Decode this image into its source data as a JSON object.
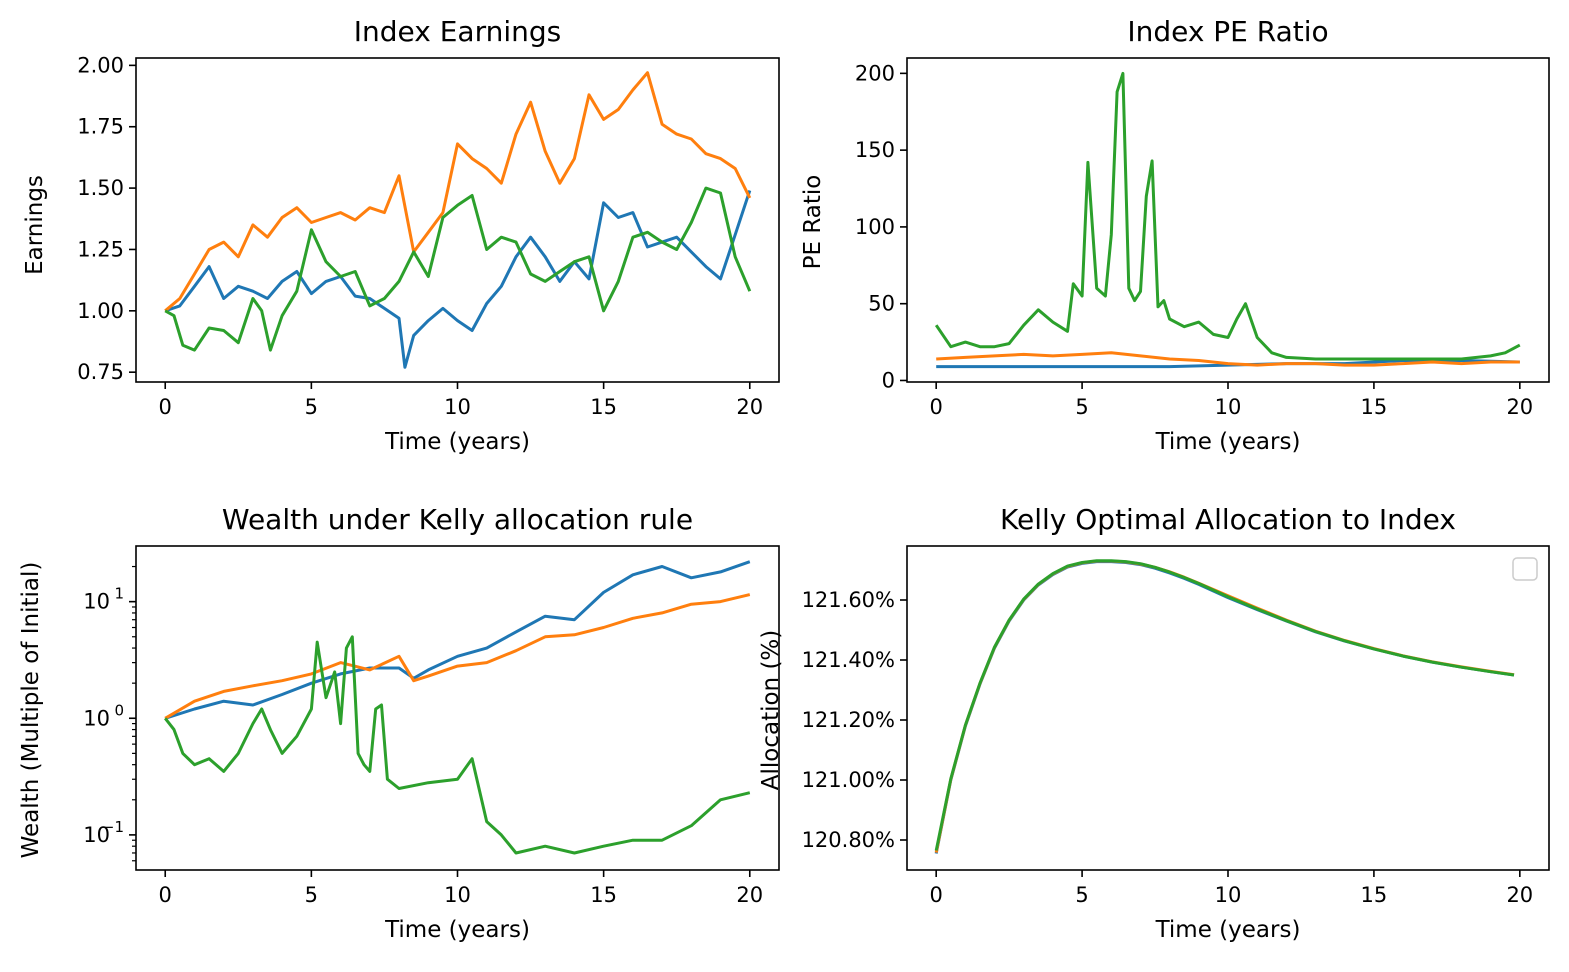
{
  "chart_data": [
    {
      "type": "line",
      "title": "Index Earnings",
      "xlabel": "Time (years)",
      "ylabel": "Earnings",
      "xlim": [
        -1,
        21
      ],
      "ylim": [
        0.71,
        2.03
      ],
      "xticks": [
        0,
        5,
        10,
        15,
        20
      ],
      "xtick_labels": [
        "0",
        "5",
        "10",
        "15",
        "20"
      ],
      "yticks": [
        0.75,
        1.0,
        1.25,
        1.5,
        1.75,
        2.0
      ],
      "ytick_labels": [
        "0.75",
        "1.00",
        "1.25",
        "1.50",
        "1.75",
        "2.00"
      ],
      "yscale": "linear",
      "legend": false,
      "series": [
        {
          "color": "#1f77b4",
          "x": [
            0,
            0.5,
            1,
            1.5,
            2,
            2.5,
            3,
            3.5,
            4,
            4.5,
            5,
            5.5,
            6,
            6.5,
            7,
            7.5,
            8,
            8.2,
            8.5,
            9,
            9.5,
            10,
            10.5,
            11,
            11.5,
            12,
            12.5,
            13,
            13.5,
            14,
            14.5,
            15,
            15.5,
            16,
            16.5,
            17,
            17.5,
            18,
            18.5,
            19,
            19.5,
            20
          ],
          "y": [
            1.0,
            1.02,
            1.1,
            1.18,
            1.05,
            1.1,
            1.08,
            1.05,
            1.12,
            1.16,
            1.07,
            1.12,
            1.14,
            1.06,
            1.05,
            1.01,
            0.97,
            0.77,
            0.9,
            0.96,
            1.01,
            0.96,
            0.92,
            1.03,
            1.1,
            1.22,
            1.3,
            1.22,
            1.12,
            1.2,
            1.13,
            1.44,
            1.38,
            1.4,
            1.26,
            1.28,
            1.3,
            1.24,
            1.18,
            1.13,
            1.31,
            1.49
          ]
        },
        {
          "color": "#ff7f0e",
          "x": [
            0,
            0.5,
            1,
            1.5,
            2,
            2.5,
            3,
            3.5,
            4,
            4.5,
            5,
            5.5,
            6,
            6.5,
            7,
            7.5,
            8,
            8.5,
            9,
            9.5,
            10,
            10.5,
            11,
            11.5,
            12,
            12.5,
            13,
            13.5,
            14,
            14.5,
            15,
            15.5,
            16,
            16.5,
            17,
            17.5,
            18,
            18.5,
            19,
            19.5,
            20
          ],
          "y": [
            1.0,
            1.05,
            1.15,
            1.25,
            1.28,
            1.22,
            1.35,
            1.3,
            1.38,
            1.42,
            1.36,
            1.38,
            1.4,
            1.37,
            1.42,
            1.4,
            1.55,
            1.24,
            1.32,
            1.4,
            1.68,
            1.62,
            1.58,
            1.52,
            1.72,
            1.85,
            1.65,
            1.52,
            1.62,
            1.88,
            1.78,
            1.82,
            1.9,
            1.97,
            1.76,
            1.72,
            1.7,
            1.64,
            1.62,
            1.58,
            1.46
          ]
        },
        {
          "color": "#2ca02c",
          "x": [
            0,
            0.3,
            0.6,
            1,
            1.5,
            2,
            2.5,
            3,
            3.3,
            3.6,
            4,
            4.5,
            5,
            5.5,
            6,
            6.5,
            7,
            7.5,
            8,
            8.5,
            9,
            9.5,
            10,
            10.5,
            11,
            11.5,
            12,
            12.5,
            13,
            13.5,
            14,
            14.5,
            15,
            15.5,
            16,
            16.5,
            17,
            17.5,
            18,
            18.5,
            19,
            19.5,
            20
          ],
          "y": [
            1.0,
            0.98,
            0.86,
            0.84,
            0.93,
            0.92,
            0.87,
            1.05,
            1.0,
            0.84,
            0.98,
            1.08,
            1.33,
            1.2,
            1.14,
            1.16,
            1.02,
            1.05,
            1.12,
            1.24,
            1.14,
            1.38,
            1.43,
            1.47,
            1.25,
            1.3,
            1.28,
            1.15,
            1.12,
            1.16,
            1.2,
            1.22,
            1.0,
            1.12,
            1.3,
            1.32,
            1.28,
            1.25,
            1.36,
            1.5,
            1.48,
            1.22,
            1.08
          ]
        }
      ]
    },
    {
      "type": "line",
      "title": "Index PE Ratio",
      "xlabel": "Time (years)",
      "ylabel": "PE Ratio",
      "xlim": [
        -1,
        21
      ],
      "ylim": [
        -1,
        210
      ],
      "xticks": [
        0,
        5,
        10,
        15,
        20
      ],
      "xtick_labels": [
        "0",
        "5",
        "10",
        "15",
        "20"
      ],
      "yticks": [
        0,
        50,
        100,
        150,
        200
      ],
      "ytick_labels": [
        "0",
        "50",
        "100",
        "150",
        "200"
      ],
      "yscale": "linear",
      "legend": false,
      "series": [
        {
          "color": "#1f77b4",
          "x": [
            0,
            2,
            4,
            6,
            8,
            10,
            12,
            14,
            16,
            18,
            20
          ],
          "y": [
            9,
            9,
            9,
            9,
            9,
            10,
            11,
            11,
            13,
            13,
            12
          ]
        },
        {
          "color": "#ff7f0e",
          "x": [
            0,
            1,
            2,
            3,
            4,
            5,
            6,
            7,
            8,
            9,
            10,
            11,
            12,
            13,
            14,
            15,
            16,
            17,
            18,
            19,
            20
          ],
          "y": [
            14,
            15,
            16,
            17,
            16,
            17,
            18,
            16,
            14,
            13,
            11,
            10,
            11,
            11,
            10,
            10,
            11,
            12,
            11,
            12,
            12
          ]
        },
        {
          "color": "#2ca02c",
          "x": [
            0,
            0.5,
            1,
            1.5,
            2,
            2.5,
            3,
            3.5,
            4,
            4.5,
            4.7,
            5,
            5.2,
            5.5,
            5.8,
            6,
            6.2,
            6.4,
            6.6,
            6.8,
            7,
            7.2,
            7.4,
            7.6,
            7.8,
            8,
            8.5,
            9,
            9.5,
            10,
            10.3,
            10.6,
            11,
            11.5,
            12,
            13,
            14,
            15,
            16,
            17,
            18,
            19,
            19.5,
            20
          ],
          "y": [
            36,
            22,
            25,
            22,
            22,
            24,
            36,
            46,
            38,
            32,
            63,
            55,
            142,
            60,
            55,
            95,
            188,
            200,
            60,
            52,
            58,
            120,
            143,
            48,
            52,
            40,
            35,
            38,
            30,
            28,
            40,
            50,
            28,
            18,
            15,
            14,
            14,
            14,
            14,
            14,
            14,
            16,
            18,
            23
          ]
        }
      ]
    },
    {
      "type": "line",
      "title": "Wealth under Kelly allocation rule",
      "xlabel": "Time (years)",
      "ylabel": "Wealth (Multiple of Initial)",
      "xlim": [
        -1,
        21
      ],
      "ylim": [
        0.05,
        30
      ],
      "xticks": [
        0,
        5,
        10,
        15,
        20
      ],
      "xtick_labels": [
        "0",
        "5",
        "10",
        "15",
        "20"
      ],
      "yticks": [
        0.1,
        1,
        10
      ],
      "ytick_labels": [
        "10",
        "10",
        "10"
      ],
      "ytick_exponents": [
        "−1",
        "0",
        "1"
      ],
      "yscale": "log",
      "legend": false,
      "series": [
        {
          "color": "#1f77b4",
          "x": [
            0,
            1,
            2,
            3,
            4,
            5,
            6,
            7,
            8,
            8.5,
            9,
            10,
            11,
            12,
            13,
            14,
            15,
            16,
            17,
            18,
            19,
            20
          ],
          "y": [
            1.0,
            1.2,
            1.4,
            1.3,
            1.6,
            2.0,
            2.4,
            2.7,
            2.7,
            2.2,
            2.6,
            3.4,
            4.0,
            5.5,
            7.5,
            7.0,
            12,
            17,
            20,
            16,
            18,
            22
          ]
        },
        {
          "color": "#ff7f0e",
          "x": [
            0,
            1,
            2,
            3,
            4,
            5,
            6,
            7,
            8,
            8.5,
            9,
            10,
            11,
            12,
            13,
            14,
            15,
            16,
            17,
            18,
            19,
            20
          ],
          "y": [
            1.0,
            1.4,
            1.7,
            1.9,
            2.1,
            2.4,
            3.0,
            2.6,
            3.4,
            2.1,
            2.3,
            2.8,
            3.0,
            3.8,
            5.0,
            5.2,
            6.0,
            7.2,
            8.0,
            9.5,
            10,
            11.5
          ]
        },
        {
          "color": "#2ca02c",
          "x": [
            0,
            0.3,
            0.6,
            1,
            1.5,
            2,
            2.5,
            3,
            3.3,
            3.6,
            4,
            4.5,
            5,
            5.2,
            5.5,
            5.8,
            6,
            6.2,
            6.4,
            6.6,
            6.8,
            7,
            7.2,
            7.4,
            7.6,
            8,
            9,
            10,
            10.5,
            11,
            11.5,
            12,
            13,
            14,
            15,
            16,
            17,
            18,
            19,
            20
          ],
          "y": [
            1.0,
            0.8,
            0.5,
            0.4,
            0.45,
            0.35,
            0.5,
            0.9,
            1.2,
            0.8,
            0.5,
            0.7,
            1.2,
            4.5,
            1.5,
            2.5,
            0.9,
            4.0,
            5.0,
            0.5,
            0.4,
            0.35,
            1.2,
            1.3,
            0.3,
            0.25,
            0.28,
            0.3,
            0.45,
            0.13,
            0.1,
            0.07,
            0.08,
            0.07,
            0.08,
            0.09,
            0.09,
            0.12,
            0.2,
            0.23
          ]
        }
      ]
    },
    {
      "type": "line",
      "title": "Kelly Optimal Allocation to Index",
      "xlabel": "Time (years)",
      "ylabel": "Allocation (%)",
      "xlim": [
        -1,
        21
      ],
      "ylim": [
        120.7,
        121.78
      ],
      "xticks": [
        0,
        5,
        10,
        15,
        20
      ],
      "xtick_labels": [
        "0",
        "5",
        "10",
        "15",
        "20"
      ],
      "yticks": [
        120.8,
        121.0,
        121.2,
        121.4,
        121.6
      ],
      "ytick_labels": [
        "120.80%",
        "121.00%",
        "121.20%",
        "121.40%",
        "121.60%"
      ],
      "yscale": "linear",
      "legend": "upper right (empty)",
      "series": [
        {
          "color": "#1f77b4",
          "x": [
            0,
            0.5,
            1,
            1.5,
            2,
            2.5,
            3,
            3.5,
            4,
            4.5,
            5,
            5.5,
            6,
            6.5,
            7,
            7.5,
            8,
            8.5,
            9,
            9.5,
            10,
            11,
            12,
            13,
            14,
            15,
            16,
            17,
            18,
            19,
            19.8
          ],
          "y": [
            120.755,
            121.0,
            121.18,
            121.32,
            121.44,
            121.53,
            121.6,
            121.65,
            121.685,
            121.71,
            121.722,
            121.728,
            121.728,
            121.725,
            121.718,
            121.706,
            121.69,
            121.672,
            121.652,
            121.63,
            121.608,
            121.568,
            121.53,
            121.494,
            121.463,
            121.437,
            121.413,
            121.393,
            121.376,
            121.361,
            121.35
          ]
        },
        {
          "color": "#ff7f0e",
          "x": [
            0,
            0.5,
            1,
            1.5,
            2,
            2.5,
            3,
            3.5,
            4,
            4.5,
            5,
            5.5,
            6,
            6.5,
            7,
            7.5,
            8,
            8.5,
            9,
            9.5,
            10,
            11,
            12,
            13,
            14,
            15,
            16,
            17,
            18,
            19,
            19.8
          ],
          "y": [
            120.758,
            121.002,
            121.182,
            121.322,
            121.442,
            121.532,
            121.602,
            121.652,
            121.687,
            121.712,
            121.724,
            121.73,
            121.73,
            121.727,
            121.72,
            121.709,
            121.694,
            121.676,
            121.656,
            121.635,
            121.614,
            121.573,
            121.533,
            121.496,
            121.465,
            121.438,
            121.414,
            121.394,
            121.377,
            121.362,
            121.351
          ]
        },
        {
          "color": "#2ca02c",
          "x": [
            0,
            0.5,
            1,
            1.5,
            2,
            2.5,
            3,
            3.5,
            4,
            4.5,
            5,
            5.5,
            6,
            6.5,
            7,
            7.5,
            8,
            8.5,
            9,
            9.5,
            10,
            11,
            12,
            13,
            14,
            15,
            16,
            17,
            18,
            19,
            19.8
          ],
          "y": [
            120.765,
            121.004,
            121.183,
            121.323,
            121.443,
            121.533,
            121.603,
            121.653,
            121.688,
            121.713,
            121.725,
            121.731,
            121.731,
            121.728,
            121.721,
            121.709,
            121.693,
            121.675,
            121.655,
            121.633,
            121.611,
            121.57,
            121.531,
            121.495,
            121.464,
            121.437,
            121.413,
            121.393,
            121.376,
            121.361,
            121.35
          ]
        }
      ]
    }
  ]
}
